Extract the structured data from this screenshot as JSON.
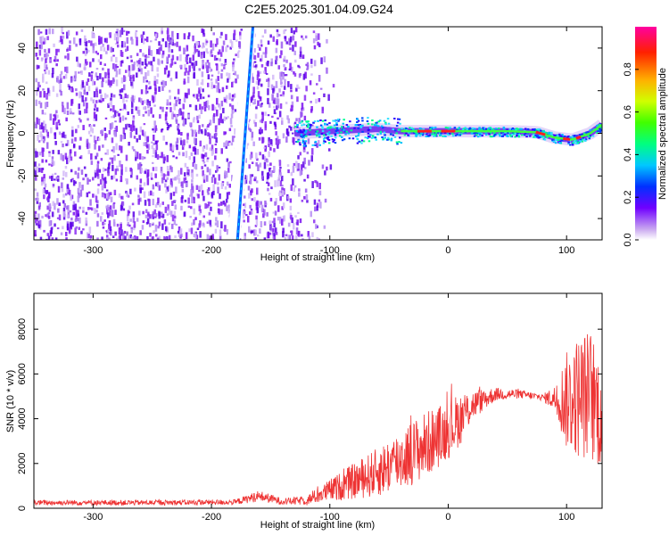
{
  "title": "C2E5.2025.301.04.09.G24",
  "chart_data": [
    {
      "type": "heatmap",
      "title": "C2E5.2025.301.04.09.G24",
      "xlabel": "Height of straight line (km)",
      "ylabel": "Frequency (Hz)",
      "xlim": [
        -350,
        130
      ],
      "ylim": [
        -50,
        50
      ],
      "xticks": [
        -300,
        -200,
        -100,
        0,
        100
      ],
      "yticks": [
        -40,
        -20,
        0,
        20,
        40
      ],
      "colorbar": {
        "label": "Normalized spectral amplitude",
        "range": [
          0,
          1
        ],
        "ticks": [
          "0.0",
          "0.2",
          "0.4",
          "0.6",
          "0.8"
        ]
      },
      "features": {
        "noise_region_x": [
          -350,
          -115
        ],
        "oblique_line": {
          "x_at_ymin": -178,
          "x_at_ymax": -165
        },
        "signal_track": [
          [
            -130,
            0
          ],
          [
            -100,
            1
          ],
          [
            -60,
            2
          ],
          [
            -40,
            1
          ],
          [
            -20,
            1
          ],
          [
            0,
            1
          ],
          [
            20,
            1
          ],
          [
            50,
            1
          ],
          [
            75,
            0.5
          ],
          [
            90,
            -2
          ],
          [
            105,
            -3
          ],
          [
            120,
            0
          ],
          [
            130,
            4
          ]
        ]
      }
    },
    {
      "type": "line",
      "xlabel": "Height of straight line (km)",
      "ylabel": "SNR (10 * v/v)",
      "xlim": [
        -350,
        130
      ],
      "ylim": [
        0,
        9600
      ],
      "xticks": [
        -300,
        -200,
        -100,
        0,
        100
      ],
      "yticks": [
        0,
        2000,
        4000,
        6000,
        8000
      ],
      "color": "#ee3333",
      "envelope": {
        "x": [
          -350,
          -250,
          -180,
          -160,
          -140,
          -120,
          -100,
          -80,
          -60,
          -40,
          -20,
          0,
          10,
          20,
          40,
          60,
          80,
          90,
          100,
          110,
          120,
          130
        ],
        "mean": [
          250,
          250,
          270,
          550,
          300,
          350,
          800,
          1200,
          1600,
          2200,
          2800,
          3500,
          4000,
          4600,
          5100,
          5100,
          4950,
          4900,
          4800,
          5000,
          5100,
          4200
        ],
        "spread": [
          120,
          120,
          120,
          250,
          150,
          200,
          500,
          800,
          1100,
          1400,
          1500,
          1300,
          1200,
          700,
          300,
          200,
          150,
          600,
          2200,
          2800,
          3000,
          2500
        ]
      }
    }
  ]
}
